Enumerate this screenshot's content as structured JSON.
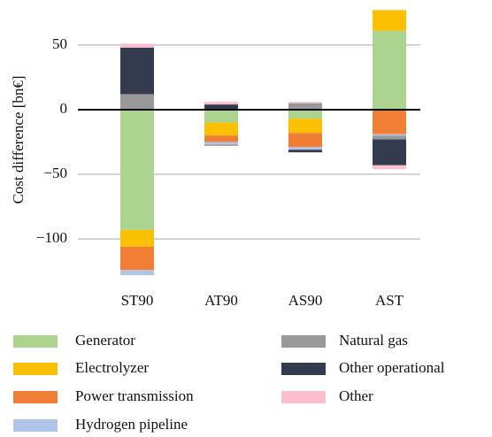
{
  "chart_data": {
    "type": "stacked-bar",
    "y_label": "Cost difference [bn€]",
    "categories": [
      "ST90",
      "AT90",
      "AS90",
      "AST"
    ],
    "series": [
      {
        "name": "Generator",
        "color": "#acd48f",
        "values": [
          -93,
          -10,
          -7,
          61
        ]
      },
      {
        "name": "Electrolyzer",
        "color": "#fcc002",
        "values": [
          -13,
          -10,
          -11,
          16
        ]
      },
      {
        "name": "Power transmission",
        "color": "#f07f35",
        "values": [
          -18,
          -5,
          -11,
          -19
        ]
      },
      {
        "name": "Hydrogen pipeline",
        "color": "#b0c4e8",
        "values": [
          -4,
          -2,
          -2,
          -1
        ]
      },
      {
        "name": "Natural gas",
        "color": "#999999",
        "values": [
          12,
          -1,
          5,
          -3
        ]
      },
      {
        "name": "Other operational",
        "color": "#353b4f",
        "values": [
          36,
          4,
          -2,
          -20
        ]
      },
      {
        "name": "Other",
        "color": "#fdbfce",
        "values": [
          3,
          2,
          1,
          -3
        ]
      }
    ],
    "ylim": [
      -130,
      80
    ],
    "yticks": [
      {
        "value": -100,
        "label": "−100"
      },
      {
        "value": -50,
        "label": "−50"
      },
      0,
      50
    ],
    "grid": true
  }
}
